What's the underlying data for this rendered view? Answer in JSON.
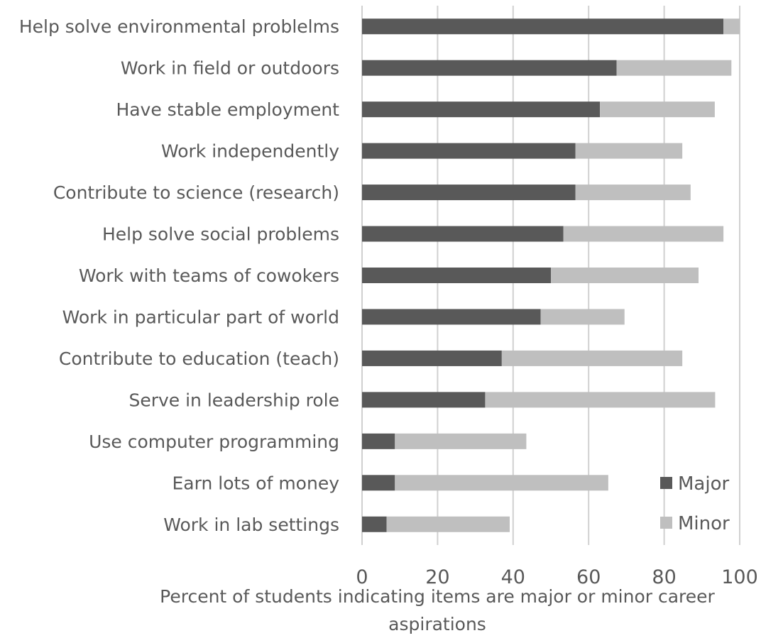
{
  "chart_data": {
    "type": "bar",
    "orientation": "horizontal",
    "stacked": true,
    "categories": [
      "Help solve environmental problelms",
      "Work in field or outdoors",
      "Have stable employment",
      "Work independently",
      "Contribute to science (research)",
      "Help solve social problems",
      "Work with teams of cowokers",
      "Work in particular part of world",
      "Contribute to education (teach)",
      "Serve in leadership role",
      "Use computer programming",
      "Earn lots of money",
      "Work in lab settings"
    ],
    "series": [
      {
        "name": "Major",
        "color": "#595959",
        "values": [
          95.7,
          67.4,
          63.0,
          56.5,
          56.5,
          53.3,
          50.0,
          47.3,
          37.0,
          32.6,
          8.7,
          8.7,
          6.5
        ]
      },
      {
        "name": "Minor",
        "color": "#bfbfbf",
        "values": [
          4.3,
          30.4,
          30.4,
          28.3,
          30.5,
          42.4,
          39.1,
          22.2,
          47.8,
          60.9,
          34.8,
          56.5,
          32.6
        ]
      }
    ],
    "xlim": [
      0,
      100
    ],
    "xticks": [
      "0",
      "20",
      "40",
      "60",
      "80",
      "100"
    ],
    "xlabel_lines": [
      "Percent of students indicating items are major or minor career",
      "aspirations"
    ],
    "grid": "vertical",
    "legend": {
      "position": "bottom-right",
      "entries": [
        "Major",
        "Minor"
      ]
    }
  }
}
